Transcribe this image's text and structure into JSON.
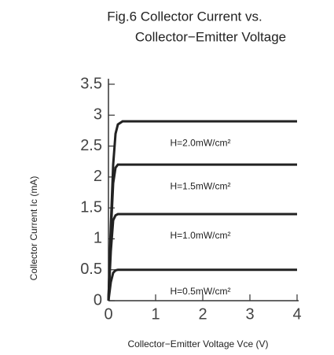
{
  "chart_data": {
    "type": "line",
    "title": [
      "Fig.6 Collector Current vs.",
      "Collector−Emitter Voltage"
    ],
    "xlabel": "Collector−Emitter Voltage Vce (V)",
    "ylabel": "Collector Current Ic (mA)",
    "x": [
      0,
      0.05,
      0.1,
      0.15,
      0.2,
      0.3,
      0.5,
      1,
      2,
      3,
      4
    ],
    "series": [
      {
        "name": "H=2.0mW/cm²",
        "color": "#222222",
        "values": [
          0,
          1.2,
          2.2,
          2.7,
          2.85,
          2.9,
          2.9,
          2.9,
          2.9,
          2.9,
          2.9
        ]
      },
      {
        "name": "H=1.5mW/cm²",
        "color": "#222222",
        "values": [
          0,
          1.1,
          1.9,
          2.15,
          2.2,
          2.2,
          2.2,
          2.2,
          2.2,
          2.2,
          2.2
        ]
      },
      {
        "name": "H=1.0mW/cm²",
        "color": "#222222",
        "values": [
          0,
          0.8,
          1.3,
          1.38,
          1.4,
          1.4,
          1.4,
          1.4,
          1.4,
          1.4,
          1.4
        ]
      },
      {
        "name": "H=0.5mW/cm²",
        "color": "#222222",
        "values": [
          0,
          0.3,
          0.45,
          0.49,
          0.5,
          0.5,
          0.5,
          0.5,
          0.5,
          0.5,
          0.5
        ]
      }
    ],
    "xlim": [
      0,
      4
    ],
    "xticks": [
      0,
      1,
      2,
      3,
      4
    ],
    "ylim": [
      0,
      3.5
    ],
    "yticks": [
      0,
      0.5,
      1,
      1.5,
      2,
      2.5,
      3,
      3.5
    ],
    "grid": false
  }
}
